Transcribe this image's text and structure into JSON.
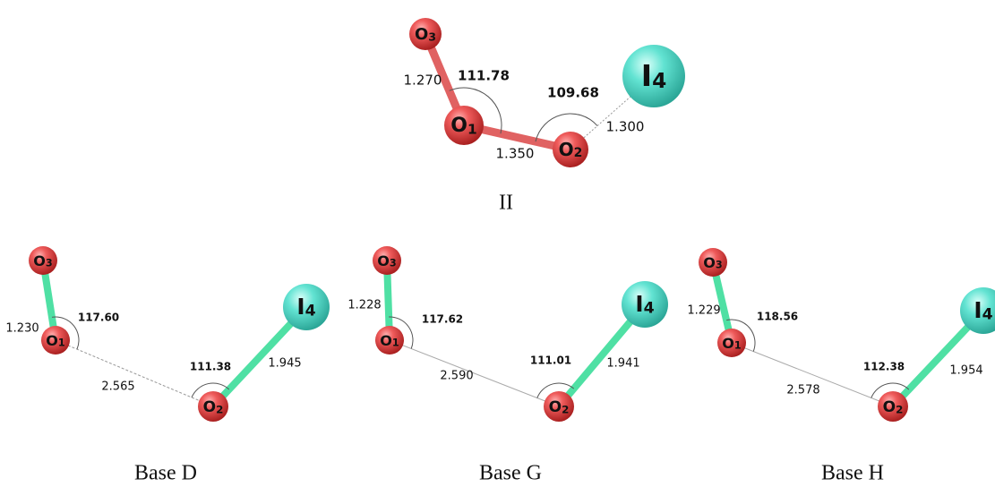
{
  "panels": [
    {
      "caption": "II",
      "atoms": [
        {
          "symbol": "O",
          "index": "3"
        },
        {
          "symbol": "O",
          "index": "1"
        },
        {
          "symbol": "O",
          "index": "2"
        },
        {
          "symbol": "I",
          "index": "4"
        }
      ],
      "bonds": [
        {
          "length": "1.270"
        },
        {
          "length": "1.350"
        },
        {
          "length": "1.300"
        }
      ],
      "angles": [
        {
          "value": "111.78"
        },
        {
          "value": "109.68"
        }
      ]
    },
    {
      "caption": "Base D",
      "atoms": [
        {
          "symbol": "O",
          "index": "3"
        },
        {
          "symbol": "O",
          "index": "1"
        },
        {
          "symbol": "O",
          "index": "2"
        },
        {
          "symbol": "I",
          "index": "4"
        }
      ],
      "bonds": [
        {
          "length": "1.230"
        },
        {
          "length": "2.565"
        },
        {
          "length": "1.945"
        }
      ],
      "angles": [
        {
          "value": "117.60"
        },
        {
          "value": "111.38"
        }
      ]
    },
    {
      "caption": "Base G",
      "atoms": [
        {
          "symbol": "O",
          "index": "3"
        },
        {
          "symbol": "O",
          "index": "1"
        },
        {
          "symbol": "O",
          "index": "2"
        },
        {
          "symbol": "I",
          "index": "4"
        }
      ],
      "bonds": [
        {
          "length": "1.228"
        },
        {
          "length": "2.590"
        },
        {
          "length": "1.941"
        }
      ],
      "angles": [
        {
          "value": "117.62"
        },
        {
          "value": "111.01"
        }
      ]
    },
    {
      "caption": "Base H",
      "atoms": [
        {
          "symbol": "O",
          "index": "3"
        },
        {
          "symbol": "O",
          "index": "1"
        },
        {
          "symbol": "O",
          "index": "2"
        },
        {
          "symbol": "I",
          "index": "4"
        }
      ],
      "bonds": [
        {
          "length": "1.229"
        },
        {
          "length": "2.578"
        },
        {
          "length": "1.954"
        }
      ],
      "angles": [
        {
          "value": "118.56"
        },
        {
          "value": "112.38"
        }
      ]
    }
  ]
}
